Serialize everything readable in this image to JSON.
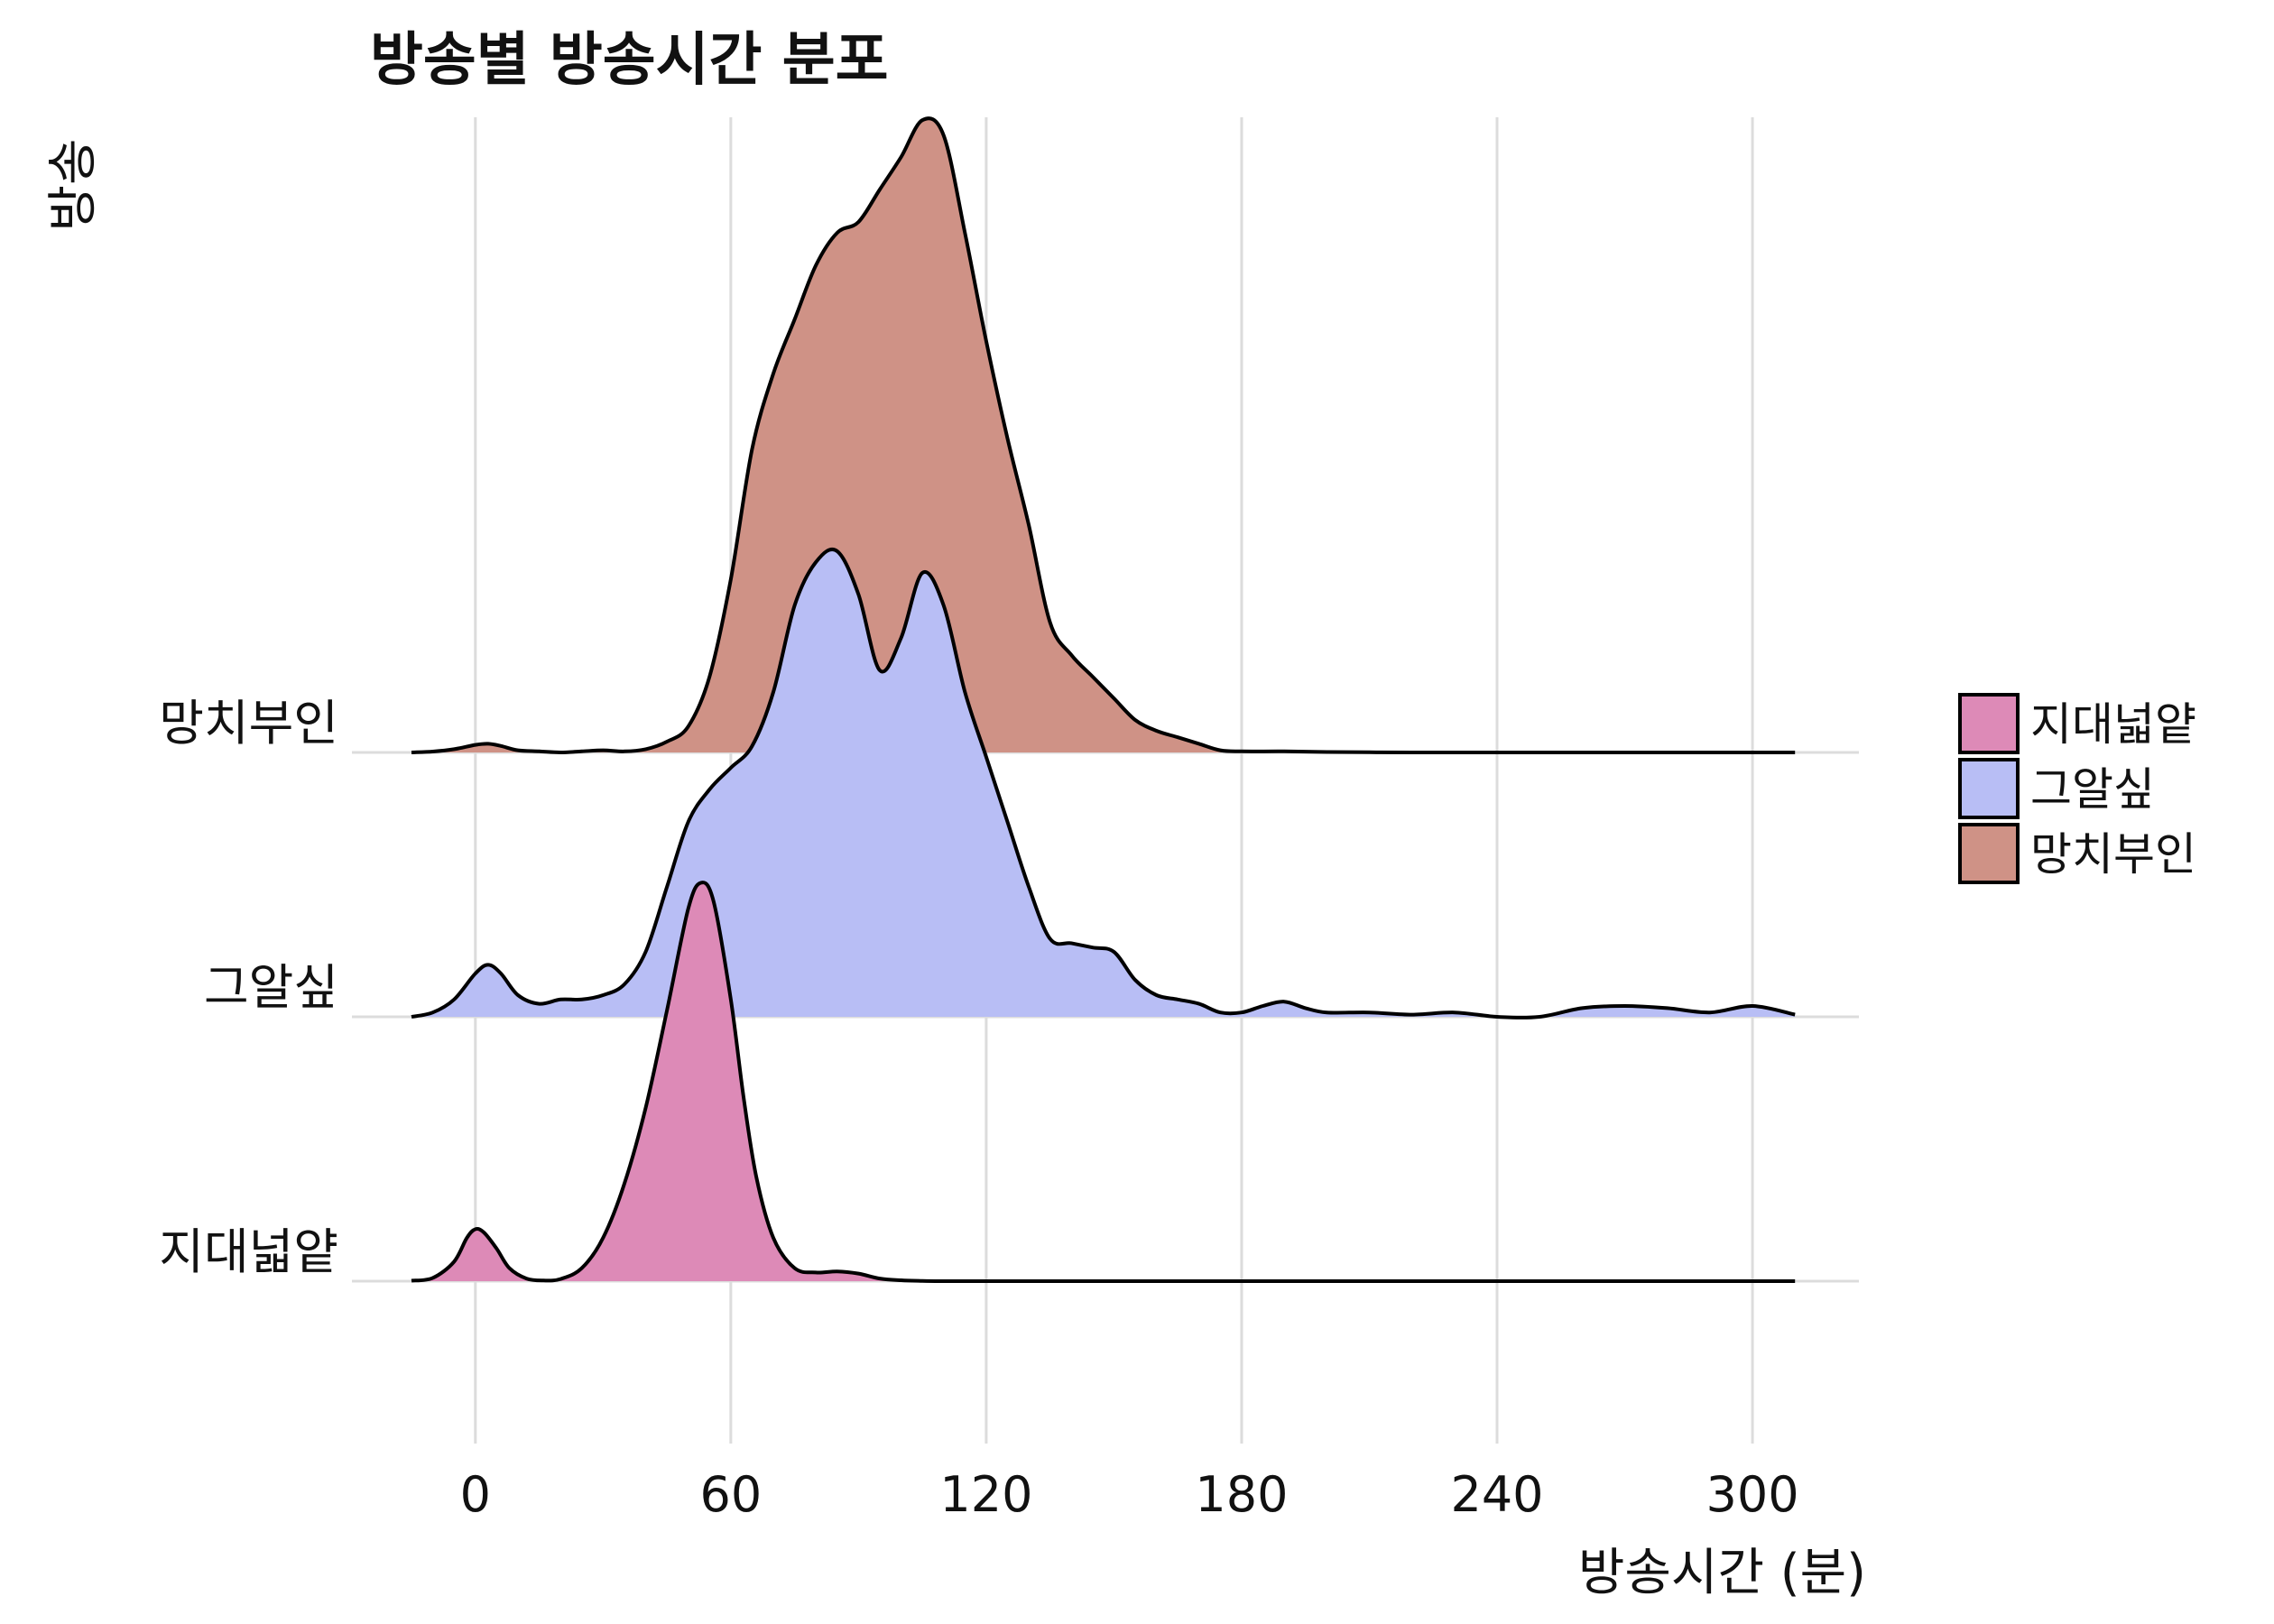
{
  "chart_data": {
    "type": "ridgeline",
    "title": "방송별 방송시간 분포",
    "xlabel": "방송시간 (분)",
    "ylabel": "방송",
    "xlim": [
      -29,
      325
    ],
    "x_ticks": [
      0,
      60,
      120,
      180,
      240,
      300
    ],
    "grid": "vertical",
    "legend_position": "right",
    "series": [
      {
        "name": "지대넓얕",
        "color": "#dd8ab7",
        "x": [
          -15,
          -10,
          -5,
          -2,
          0,
          2,
          5,
          8,
          12,
          16,
          20,
          25,
          30,
          35,
          40,
          45,
          50,
          53,
          56,
          60,
          63,
          66,
          70,
          75,
          80,
          85,
          90,
          95,
          100,
          105,
          110,
          120,
          150,
          200,
          250,
          310
        ],
        "density": [
          0.002,
          0.015,
          0.09,
          0.2,
          0.24,
          0.225,
          0.15,
          0.06,
          0.012,
          0.003,
          0.01,
          0.06,
          0.2,
          0.45,
          0.8,
          1.25,
          1.72,
          1.84,
          1.75,
          1.3,
          0.85,
          0.48,
          0.2,
          0.06,
          0.04,
          0.045,
          0.035,
          0.012,
          0.004,
          0.001,
          0,
          0,
          0,
          0,
          0,
          0
        ]
      },
      {
        "name": "그알싶",
        "color": "#b8bef5",
        "x": [
          -15,
          -10,
          -5,
          0,
          3,
          6,
          10,
          15,
          20,
          25,
          30,
          35,
          40,
          45,
          50,
          55,
          60,
          65,
          70,
          75,
          80,
          85,
          90,
          95,
          100,
          105,
          110,
          115,
          120,
          125,
          130,
          135,
          140,
          145,
          150,
          155,
          160,
          165,
          170,
          175,
          180,
          185,
          190,
          195,
          200,
          210,
          220,
          230,
          240,
          250,
          260,
          270,
          280,
          290,
          300,
          310
        ],
        "density": [
          0.0,
          0.02,
          0.08,
          0.2,
          0.24,
          0.2,
          0.1,
          0.06,
          0.08,
          0.08,
          0.1,
          0.15,
          0.3,
          0.6,
          0.9,
          1.05,
          1.15,
          1.25,
          1.5,
          1.9,
          2.1,
          2.15,
          1.95,
          1.6,
          1.75,
          2.05,
          1.9,
          1.5,
          1.2,
          0.9,
          0.6,
          0.36,
          0.34,
          0.32,
          0.3,
          0.17,
          0.1,
          0.08,
          0.06,
          0.02,
          0.02,
          0.05,
          0.07,
          0.04,
          0.02,
          0.02,
          0.01,
          0.02,
          0.0,
          0.0,
          0.04,
          0.05,
          0.04,
          0.02,
          0.05,
          0.01
        ]
      },
      {
        "name": "망치부인",
        "color": "#cf9286",
        "x": [
          -15,
          -10,
          -5,
          0,
          3,
          6,
          10,
          15,
          20,
          25,
          30,
          35,
          40,
          45,
          50,
          55,
          60,
          65,
          70,
          75,
          80,
          85,
          90,
          95,
          100,
          105,
          110,
          115,
          120,
          125,
          130,
          135,
          140,
          145,
          150,
          155,
          160,
          165,
          170,
          175,
          180,
          190,
          200,
          210,
          220,
          250,
          280,
          310
        ],
        "density": [
          0.0,
          0.004,
          0.015,
          0.035,
          0.04,
          0.03,
          0.01,
          0.005,
          0.0,
          0.005,
          0.01,
          0.005,
          0.015,
          0.05,
          0.12,
          0.35,
          0.8,
          1.4,
          1.75,
          2.0,
          2.25,
          2.4,
          2.45,
          2.6,
          2.75,
          2.92,
          2.85,
          2.4,
          1.9,
          1.45,
          1.05,
          0.6,
          0.45,
          0.35,
          0.25,
          0.15,
          0.1,
          0.07,
          0.04,
          0.01,
          0.005,
          0.005,
          0.002,
          0.001,
          0,
          0,
          0,
          0
        ]
      }
    ]
  }
}
